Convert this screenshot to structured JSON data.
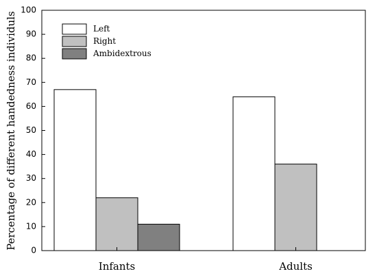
{
  "chart_data": {
    "type": "bar",
    "categories": [
      "Infants",
      "Adults"
    ],
    "series": [
      {
        "name": "Left",
        "values": [
          67,
          64
        ],
        "color": "#ffffff"
      },
      {
        "name": "Right",
        "values": [
          22,
          36
        ],
        "color": "#c0c0c0"
      },
      {
        "name": "Ambidextrous",
        "values": [
          11,
          0
        ],
        "color": "#808080"
      }
    ],
    "xlabel": "",
    "ylabel": "Percentage of different handedness individuls",
    "ylim": [
      0,
      100
    ],
    "yticks": [
      "0",
      "10",
      "20",
      "30",
      "40",
      "50",
      "60",
      "70",
      "80",
      "90",
      "100"
    ],
    "grid": false,
    "legend_position": "top-left"
  }
}
